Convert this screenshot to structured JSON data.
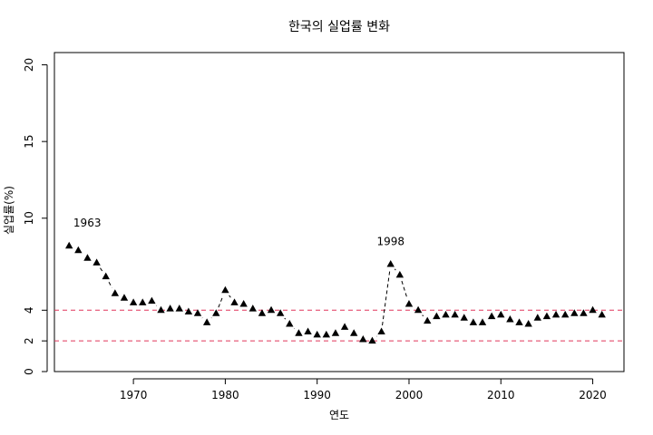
{
  "chart_data": {
    "type": "scatter",
    "title": "한국의 실업률 변화",
    "xlabel": "연도",
    "ylabel": "실업률(%)",
    "xlim": [
      1961.4,
      2023.4
    ],
    "ylim": [
      0,
      20.8
    ],
    "x_ticks": [
      1970,
      1980,
      1990,
      2000,
      2010,
      2020
    ],
    "y_ticks": [
      0,
      2,
      4,
      10,
      15,
      20
    ],
    "grid": false,
    "marker": "filled-triangle",
    "line_style": "dashed",
    "reference_lines": [
      {
        "y": 4,
        "color": "#e0365b",
        "style": "dashed"
      },
      {
        "y": 2,
        "color": "#e0365b",
        "style": "dashed"
      }
    ],
    "annotations": [
      {
        "x": 1963,
        "label": "1963"
      },
      {
        "x": 1998,
        "label": "1998"
      }
    ],
    "series": [
      {
        "x": [
          1963,
          1964,
          1965,
          1966,
          1967,
          1968,
          1969,
          1970,
          1971,
          1972,
          1973,
          1974,
          1975,
          1976,
          1977,
          1978,
          1979,
          1980,
          1981,
          1982,
          1983,
          1984,
          1985,
          1986,
          1987,
          1988,
          1989,
          1990,
          1991,
          1992,
          1993,
          1994,
          1995,
          1996,
          1997,
          1998,
          1999,
          2000,
          2001,
          2002,
          2003,
          2004,
          2005,
          2006,
          2007,
          2008,
          2009,
          2010,
          2011,
          2012,
          2013,
          2014,
          2015,
          2016,
          2017,
          2018,
          2019,
          2020,
          2021
        ],
        "y": [
          8.2,
          7.9,
          7.4,
          7.1,
          6.2,
          5.1,
          4.8,
          4.5,
          4.5,
          4.6,
          4.0,
          4.1,
          4.1,
          3.9,
          3.8,
          3.2,
          3.8,
          5.3,
          4.5,
          4.4,
          4.1,
          3.8,
          4.0,
          3.8,
          3.1,
          2.5,
          2.6,
          2.4,
          2.4,
          2.5,
          2.9,
          2.5,
          2.1,
          2.0,
          2.6,
          7.0,
          6.3,
          4.4,
          4.0,
          3.3,
          3.6,
          3.7,
          3.7,
          3.5,
          3.2,
          3.2,
          3.6,
          3.7,
          3.4,
          3.2,
          3.1,
          3.5,
          3.6,
          3.7,
          3.7,
          3.8,
          3.8,
          4.0,
          3.7
        ]
      }
    ]
  }
}
